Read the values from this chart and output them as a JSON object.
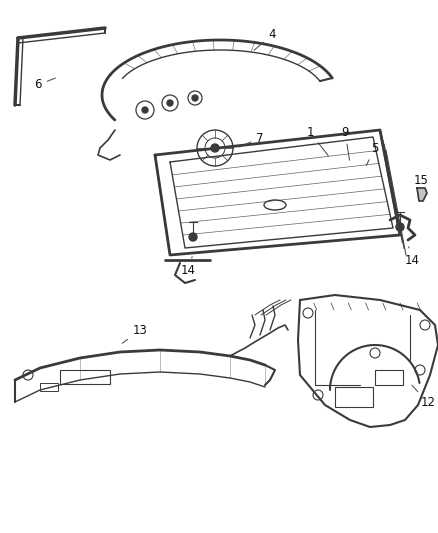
{
  "background_color": "#ffffff",
  "line_color": "#3a3a3a",
  "label_color": "#111111",
  "label_fontsize": 8.5,
  "fig_width": 4.38,
  "fig_height": 5.33,
  "dpi": 100
}
